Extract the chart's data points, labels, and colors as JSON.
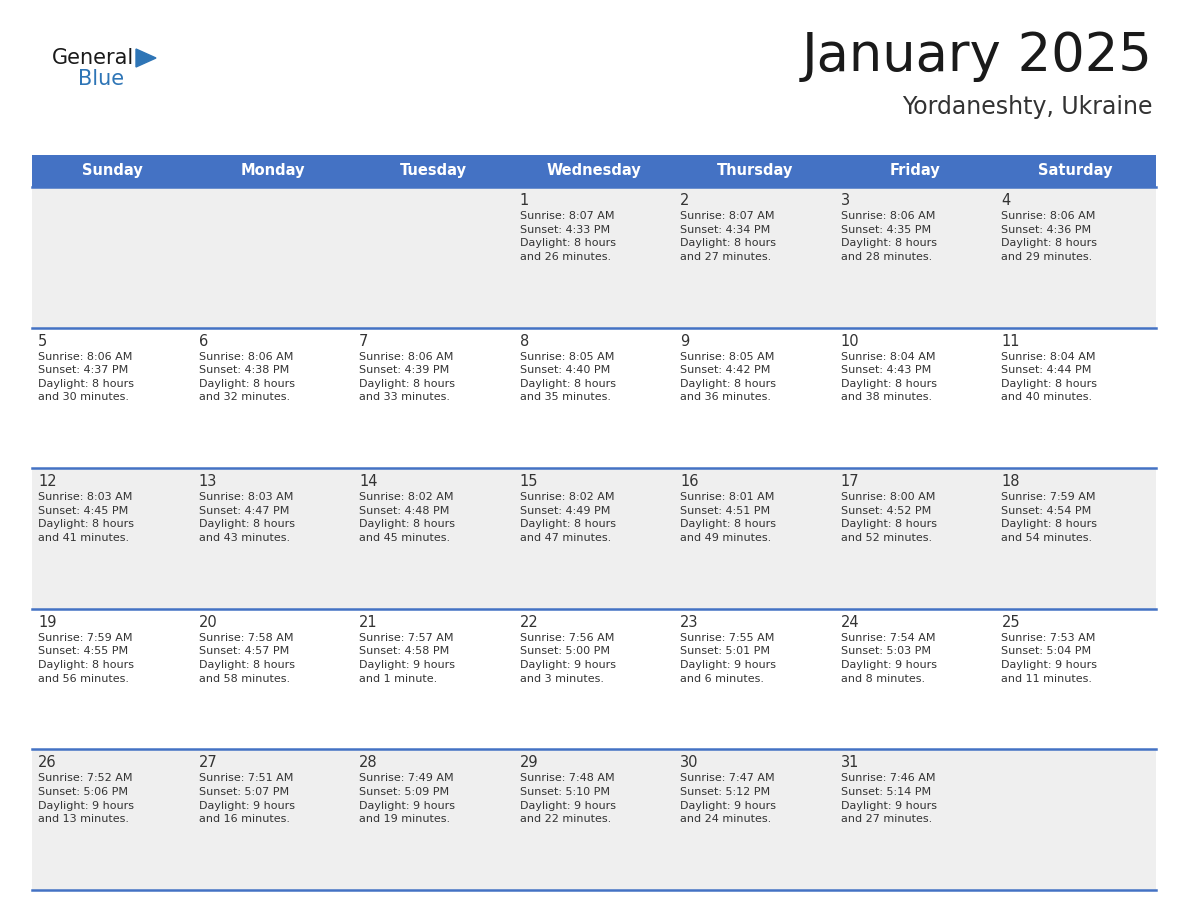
{
  "title": "January 2025",
  "subtitle": "Yordaneshty, Ukraine",
  "days_of_week": [
    "Sunday",
    "Monday",
    "Tuesday",
    "Wednesday",
    "Thursday",
    "Friday",
    "Saturday"
  ],
  "header_bg": "#4472C4",
  "header_text_color": "#FFFFFF",
  "row_bg_even": "#EFEFEF",
  "row_bg_odd": "#FFFFFF",
  "cell_border_color": "#4472C4",
  "title_color": "#1a1a1a",
  "subtitle_color": "#333333",
  "text_color": "#333333",
  "calendar_data": [
    [
      {
        "day": "",
        "info": ""
      },
      {
        "day": "",
        "info": ""
      },
      {
        "day": "",
        "info": ""
      },
      {
        "day": "1",
        "info": "Sunrise: 8:07 AM\nSunset: 4:33 PM\nDaylight: 8 hours\nand 26 minutes."
      },
      {
        "day": "2",
        "info": "Sunrise: 8:07 AM\nSunset: 4:34 PM\nDaylight: 8 hours\nand 27 minutes."
      },
      {
        "day": "3",
        "info": "Sunrise: 8:06 AM\nSunset: 4:35 PM\nDaylight: 8 hours\nand 28 minutes."
      },
      {
        "day": "4",
        "info": "Sunrise: 8:06 AM\nSunset: 4:36 PM\nDaylight: 8 hours\nand 29 minutes."
      }
    ],
    [
      {
        "day": "5",
        "info": "Sunrise: 8:06 AM\nSunset: 4:37 PM\nDaylight: 8 hours\nand 30 minutes."
      },
      {
        "day": "6",
        "info": "Sunrise: 8:06 AM\nSunset: 4:38 PM\nDaylight: 8 hours\nand 32 minutes."
      },
      {
        "day": "7",
        "info": "Sunrise: 8:06 AM\nSunset: 4:39 PM\nDaylight: 8 hours\nand 33 minutes."
      },
      {
        "day": "8",
        "info": "Sunrise: 8:05 AM\nSunset: 4:40 PM\nDaylight: 8 hours\nand 35 minutes."
      },
      {
        "day": "9",
        "info": "Sunrise: 8:05 AM\nSunset: 4:42 PM\nDaylight: 8 hours\nand 36 minutes."
      },
      {
        "day": "10",
        "info": "Sunrise: 8:04 AM\nSunset: 4:43 PM\nDaylight: 8 hours\nand 38 minutes."
      },
      {
        "day": "11",
        "info": "Sunrise: 8:04 AM\nSunset: 4:44 PM\nDaylight: 8 hours\nand 40 minutes."
      }
    ],
    [
      {
        "day": "12",
        "info": "Sunrise: 8:03 AM\nSunset: 4:45 PM\nDaylight: 8 hours\nand 41 minutes."
      },
      {
        "day": "13",
        "info": "Sunrise: 8:03 AM\nSunset: 4:47 PM\nDaylight: 8 hours\nand 43 minutes."
      },
      {
        "day": "14",
        "info": "Sunrise: 8:02 AM\nSunset: 4:48 PM\nDaylight: 8 hours\nand 45 minutes."
      },
      {
        "day": "15",
        "info": "Sunrise: 8:02 AM\nSunset: 4:49 PM\nDaylight: 8 hours\nand 47 minutes."
      },
      {
        "day": "16",
        "info": "Sunrise: 8:01 AM\nSunset: 4:51 PM\nDaylight: 8 hours\nand 49 minutes."
      },
      {
        "day": "17",
        "info": "Sunrise: 8:00 AM\nSunset: 4:52 PM\nDaylight: 8 hours\nand 52 minutes."
      },
      {
        "day": "18",
        "info": "Sunrise: 7:59 AM\nSunset: 4:54 PM\nDaylight: 8 hours\nand 54 minutes."
      }
    ],
    [
      {
        "day": "19",
        "info": "Sunrise: 7:59 AM\nSunset: 4:55 PM\nDaylight: 8 hours\nand 56 minutes."
      },
      {
        "day": "20",
        "info": "Sunrise: 7:58 AM\nSunset: 4:57 PM\nDaylight: 8 hours\nand 58 minutes."
      },
      {
        "day": "21",
        "info": "Sunrise: 7:57 AM\nSunset: 4:58 PM\nDaylight: 9 hours\nand 1 minute."
      },
      {
        "day": "22",
        "info": "Sunrise: 7:56 AM\nSunset: 5:00 PM\nDaylight: 9 hours\nand 3 minutes."
      },
      {
        "day": "23",
        "info": "Sunrise: 7:55 AM\nSunset: 5:01 PM\nDaylight: 9 hours\nand 6 minutes."
      },
      {
        "day": "24",
        "info": "Sunrise: 7:54 AM\nSunset: 5:03 PM\nDaylight: 9 hours\nand 8 minutes."
      },
      {
        "day": "25",
        "info": "Sunrise: 7:53 AM\nSunset: 5:04 PM\nDaylight: 9 hours\nand 11 minutes."
      }
    ],
    [
      {
        "day": "26",
        "info": "Sunrise: 7:52 AM\nSunset: 5:06 PM\nDaylight: 9 hours\nand 13 minutes."
      },
      {
        "day": "27",
        "info": "Sunrise: 7:51 AM\nSunset: 5:07 PM\nDaylight: 9 hours\nand 16 minutes."
      },
      {
        "day": "28",
        "info": "Sunrise: 7:49 AM\nSunset: 5:09 PM\nDaylight: 9 hours\nand 19 minutes."
      },
      {
        "day": "29",
        "info": "Sunrise: 7:48 AM\nSunset: 5:10 PM\nDaylight: 9 hours\nand 22 minutes."
      },
      {
        "day": "30",
        "info": "Sunrise: 7:47 AM\nSunset: 5:12 PM\nDaylight: 9 hours\nand 24 minutes."
      },
      {
        "day": "31",
        "info": "Sunrise: 7:46 AM\nSunset: 5:14 PM\nDaylight: 9 hours\nand 27 minutes."
      },
      {
        "day": "",
        "info": ""
      }
    ]
  ],
  "logo_general_color": "#1a1a1a",
  "logo_blue_color": "#2E75B6",
  "logo_triangle_color": "#2E75B6"
}
